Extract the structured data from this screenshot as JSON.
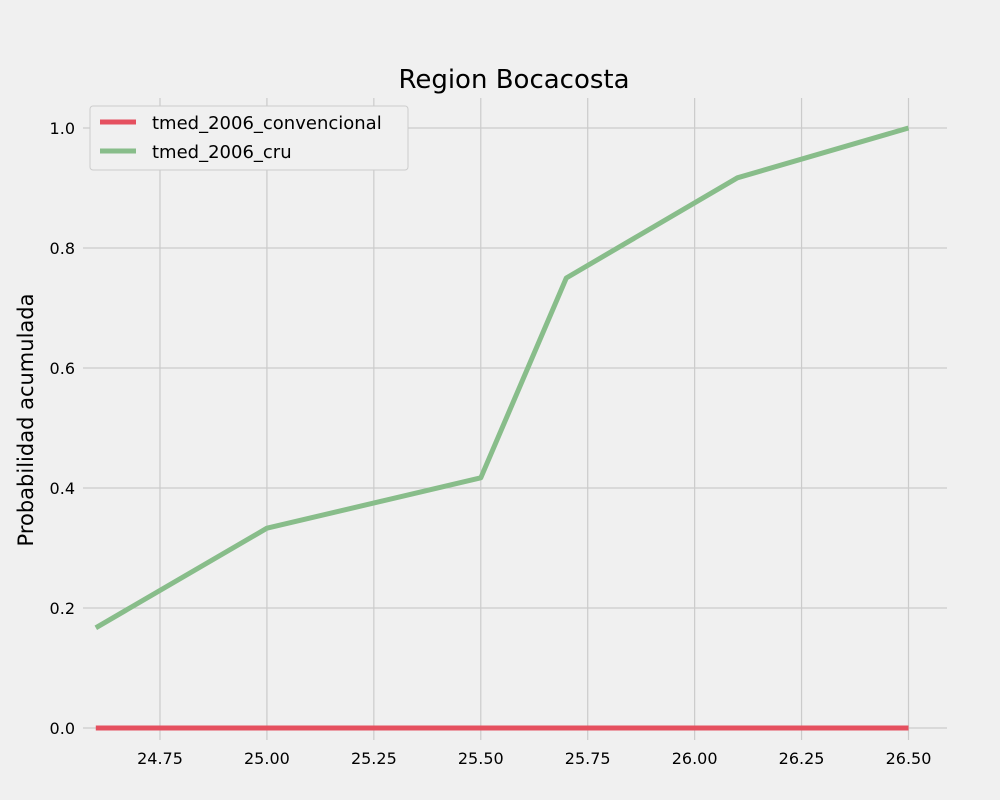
{
  "chart_data": {
    "type": "line",
    "title": "Region Bocacosta",
    "xlabel": "",
    "ylabel": "Probabilidad acumulada",
    "xlim": [
      24.57,
      26.59
    ],
    "ylim": [
      -0.02,
      1.05
    ],
    "x_ticks": [
      24.75,
      25.0,
      25.25,
      25.5,
      25.75,
      26.0,
      26.25,
      26.5
    ],
    "x_tick_labels": [
      "24.75",
      "25.00",
      "25.25",
      "25.50",
      "25.75",
      "26.00",
      "26.25",
      "26.50"
    ],
    "y_ticks": [
      0.0,
      0.2,
      0.4,
      0.6,
      0.8,
      1.0
    ],
    "y_tick_labels": [
      "0.0",
      "0.2",
      "0.4",
      "0.6",
      "0.8",
      "1.0"
    ],
    "grid": true,
    "legend_position": "top-left",
    "series": [
      {
        "name": "tmed_2006_convencional",
        "color": "#e5505f",
        "x": [
          24.6,
          26.5
        ],
        "y": [
          0.0,
          0.0
        ]
      },
      {
        "name": "tmed_2006_cru",
        "color": "#88bd8a",
        "x": [
          24.6,
          25.0,
          25.5,
          25.7,
          26.1,
          26.5
        ],
        "y": [
          0.167,
          0.333,
          0.417,
          0.75,
          0.917,
          1.0
        ]
      }
    ]
  }
}
